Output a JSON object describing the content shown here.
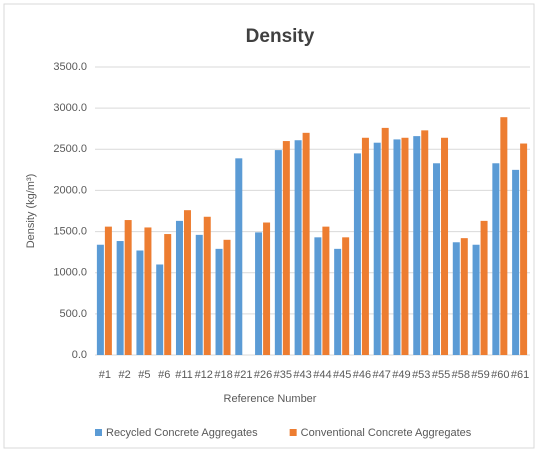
{
  "chart_data": {
    "type": "bar",
    "title": "Density",
    "x_label": "Reference Number",
    "y_label": "Density (kg/m³)",
    "categories": [
      "#1",
      "#2",
      "#5",
      "#6",
      "#11",
      "#12",
      "#18",
      "#21",
      "#26",
      "#35",
      "#43",
      "#44",
      "#45",
      "#46",
      "#47",
      "#49",
      "#53",
      "#55",
      "#58",
      "#59",
      "#60",
      "#61"
    ],
    "series": [
      {
        "name": "Recycled Concrete Aggregates",
        "color": "#5b9bd5",
        "values": [
          1340,
          1385,
          1270,
          1100,
          1630,
          1460,
          1290,
          2390,
          1490,
          2490,
          2610,
          1430,
          1290,
          2450,
          2580,
          2620,
          2660,
          2330,
          1370,
          1340,
          2330,
          2250
        ]
      },
      {
        "name": "Conventional Concrete Aggregates",
        "color": "#ed7d31",
        "values": [
          1560,
          1640,
          1550,
          1470,
          1760,
          1680,
          1400,
          null,
          1610,
          2600,
          2700,
          1560,
          1430,
          2640,
          2760,
          2640,
          2730,
          2640,
          1420,
          1630,
          2890,
          2570
        ]
      }
    ],
    "ylim": [
      0,
      3500
    ],
    "yticks": [
      {
        "value": 0,
        "label": "0.0"
      },
      {
        "value": 500,
        "label": "500.0"
      },
      {
        "value": 1000,
        "label": "1000.0"
      },
      {
        "value": 1500,
        "label": "1500.0"
      },
      {
        "value": 2000,
        "label": "2000.0"
      },
      {
        "value": 2500,
        "label": "2500.0"
      },
      {
        "value": 3000,
        "label": "3000.0"
      },
      {
        "value": 3500,
        "label": "3500.0"
      }
    ],
    "grid": true,
    "legend": "bottom"
  }
}
